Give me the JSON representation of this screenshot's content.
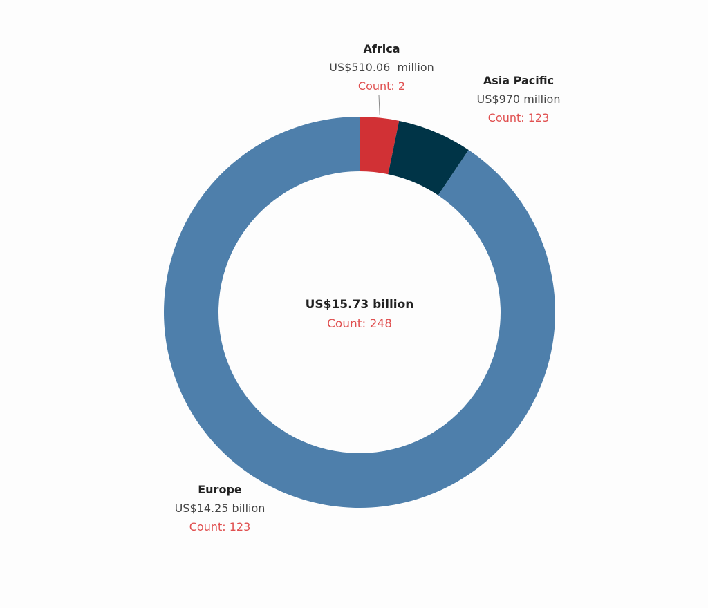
{
  "chart_data": {
    "type": "pie",
    "variant": "donut",
    "title": "",
    "segments": [
      {
        "name": "Africa",
        "value_label": "US$510.06  million",
        "value": 510.06,
        "unit": "million",
        "count_label": "Count: 2",
        "count": 2,
        "color": "#d13135"
      },
      {
        "name": "Asia Pacific",
        "value_label": "US$970 million",
        "value": 970,
        "unit": "million",
        "count_label": "Count: 123",
        "count": 123,
        "color": "#003447"
      },
      {
        "name": "Europe",
        "value_label": "US$14.25 billion",
        "value": 14250,
        "unit": "million",
        "count_label": "Count: 123",
        "count": 123,
        "color": "#4e7fab"
      }
    ],
    "center": {
      "total_label": "US$15.73 billion",
      "count_label": "Count: 248"
    },
    "colors": {
      "count_text": "#e05050",
      "name_text": "#222222",
      "value_text": "#444444",
      "leader_line": "#888888"
    }
  }
}
